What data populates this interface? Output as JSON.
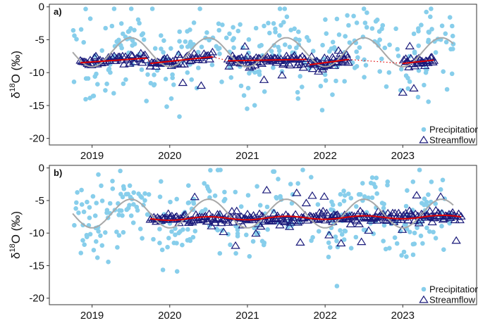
{
  "chart_data": [
    {
      "type": "scatter",
      "panel_label": "a)",
      "ylabel": "δ18O (‰)",
      "ylabel_main": "δ",
      "ylabel_sup": "18",
      "ylabel_rest": "O (‰)",
      "xlim": [
        2018.45,
        2023.95
      ],
      "ylim": [
        -21,
        0.4
      ],
      "x_ticks": [
        2019,
        2020,
        2021,
        2022,
        2023
      ],
      "x_tick_labels": [
        "2019",
        "2020",
        "2021",
        "2022",
        "2023"
      ],
      "y_ticks": [
        0,
        -5,
        -10,
        -15,
        -20
      ],
      "y_tick_labels": [
        "0",
        "-5",
        "-10",
        "-15",
        "-20"
      ],
      "legend_position": "bottom-right",
      "legend": [
        {
          "label": "Precipitation",
          "marker": "circle",
          "color": "#87ceeb"
        },
        {
          "label": "Streamflow",
          "marker": "triangle",
          "color": "#1a1a7a"
        }
      ],
      "precip_sine": {
        "mean": -6.9,
        "amplitude": 2.2,
        "peak_year_fraction": 0.5,
        "x_range": [
          2018.75,
          2023.65
        ],
        "color": "#a8a8a8"
      },
      "stream_fit": {
        "type": "per-period",
        "color": "#e00000",
        "gap_style": "dotted"
      },
      "stream_periods": [
        {
          "x_range": [
            2018.85,
            2019.7
          ],
          "y_start": -8.5,
          "y_end": -7.8,
          "n": 48
        },
        {
          "x_range": [
            2019.75,
            2020.55
          ],
          "y_start": -8.6,
          "y_end": -7.6,
          "n": 45
        },
        {
          "x_range": [
            2020.75,
            2021.75
          ],
          "y_start": -8.2,
          "y_end": -8.0,
          "n": 70
        },
        {
          "x_range": [
            2021.8,
            2022.3
          ],
          "y_start": -8.8,
          "y_end": -8.0,
          "n": 40
        },
        {
          "x_range": [
            2023.0,
            2023.4
          ],
          "y_start": -8.6,
          "y_end": -8.1,
          "n": 32
        }
      ],
      "precip_count": 330,
      "precip_noise_sd": 3.0,
      "precip_range": [
        -20,
        -0.3
      ]
    },
    {
      "type": "scatter",
      "panel_label": "b)",
      "ylabel": "δ18O (‰)",
      "ylabel_main": "δ",
      "ylabel_sup": "18",
      "ylabel_rest": "O (‰)",
      "xlim": [
        2018.45,
        2023.95
      ],
      "ylim": [
        -21,
        0.4
      ],
      "x_ticks": [
        2019,
        2020,
        2021,
        2022,
        2023
      ],
      "x_tick_labels": [
        "2019",
        "2020",
        "2021",
        "2022",
        "2023"
      ],
      "y_ticks": [
        0,
        -5,
        -10,
        -15,
        -20
      ],
      "y_tick_labels": [
        "0",
        "-5",
        "-10",
        "-15",
        "-20"
      ],
      "legend_position": "bottom-right",
      "legend": [
        {
          "label": "Precipitation",
          "marker": "circle",
          "color": "#87ceeb"
        },
        {
          "label": "Streamflow",
          "marker": "triangle",
          "color": "#1a1a7a"
        }
      ],
      "precip_sine": {
        "mean": -7.0,
        "amplitude": 2.2,
        "peak_year_fraction": 0.5,
        "x_range": [
          2018.75,
          2023.65
        ],
        "color": "#a8a8a8"
      },
      "stream_fit": {
        "type": "continuous",
        "x_range": [
          2019.75,
          2023.75
        ],
        "y_start": -7.8,
        "y_end": -7.5,
        "wave_amplitude": 0.25,
        "color": "#e00000"
      },
      "stream_periods": [
        {
          "x_range": [
            2019.75,
            2023.75
          ],
          "y_start": -7.8,
          "y_end": -7.5,
          "n": 260
        }
      ],
      "precip_count": 330,
      "precip_noise_sd": 3.0,
      "precip_range": [
        -20,
        -0.3
      ]
    }
  ]
}
